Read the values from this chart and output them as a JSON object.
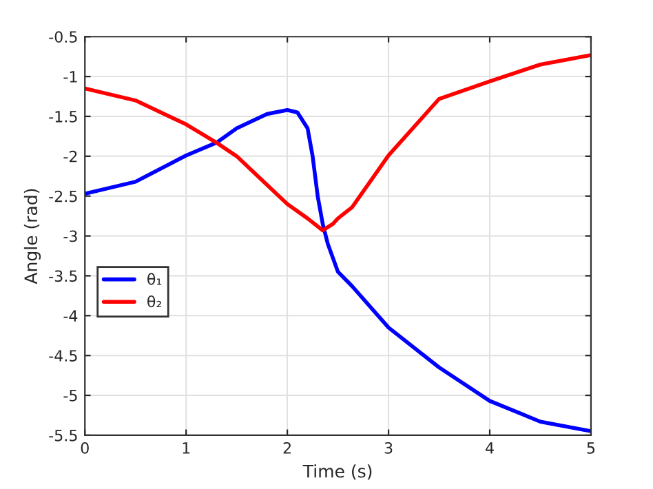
{
  "chart_data": {
    "type": "line",
    "xlabel": "Time (s)",
    "ylabel": "Angle (rad)",
    "xlim": [
      0,
      5
    ],
    "xticks": [
      0,
      1,
      2,
      3,
      4,
      5
    ],
    "ylim": [
      -5.5,
      -0.5
    ],
    "yticks": [
      -5.5,
      -5,
      -4.5,
      -4,
      -3.5,
      -3,
      -2.5,
      -2,
      -1.5,
      -1,
      -0.5
    ],
    "grid": true,
    "legend": "left",
    "marker": "none",
    "line_style": "solid",
    "series": [
      {
        "name": "θ₁",
        "color": "#0000ff",
        "x": [
          0,
          0.5,
          1,
          1.3,
          1.5,
          1.8,
          2.0,
          2.1,
          2.2,
          2.25,
          2.3,
          2.35,
          2.4,
          2.5,
          2.64,
          3,
          3.5,
          4,
          4.5,
          5
        ],
        "values": [
          -2.47,
          -2.32,
          -1.99,
          -1.83,
          -1.65,
          -1.47,
          -1.42,
          -1.45,
          -1.65,
          -2.0,
          -2.5,
          -2.85,
          -3.1,
          -3.45,
          -3.63,
          -4.15,
          -4.65,
          -5.07,
          -5.33,
          -5.45
        ]
      },
      {
        "name": "θ₂",
        "color": "#ff0000",
        "x": [
          0,
          0.5,
          1,
          1.3,
          1.5,
          2.0,
          2.2,
          2.35,
          2.45,
          2.5,
          2.64,
          3,
          3.5,
          4,
          4.5,
          5
        ],
        "values": [
          -1.15,
          -1.3,
          -1.6,
          -1.83,
          -2.0,
          -2.6,
          -2.78,
          -2.93,
          -2.85,
          -2.78,
          -2.64,
          -1.99,
          -1.28,
          -1.06,
          -0.85,
          -0.73
        ]
      }
    ]
  }
}
